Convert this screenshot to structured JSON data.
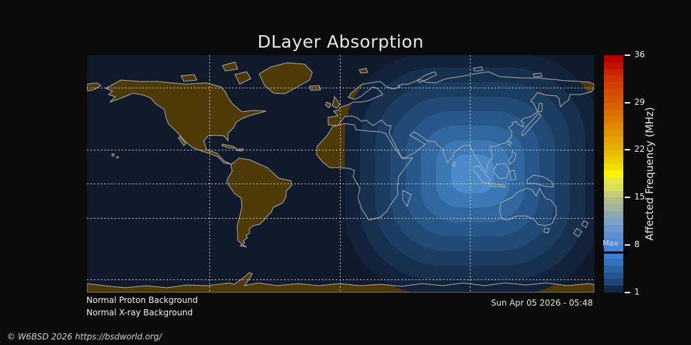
{
  "title": "DLayer Absorption",
  "map": {
    "status_lines": [
      "Normal Proton Background",
      "Normal X-ray Background"
    ],
    "timestamp": "Sun Apr 05 2026 - 05:48",
    "ocean_color": "#101a2b",
    "land_color": "#4e3a07",
    "coastline_color": "#b0afae",
    "contour_colors": [
      "#12223a",
      "#16304e",
      "#1b3d62",
      "#214a76",
      "#28588b",
      "#31679f",
      "#3b78b4",
      "#4c8bcb"
    ]
  },
  "colorbar": {
    "axis_label": "Affected Frequency (MHz)",
    "tick_labels": [
      "36",
      "29",
      "22",
      "15",
      "8",
      "1"
    ],
    "value_range": [
      1,
      36
    ],
    "max_label": "Max",
    "max_value": "8",
    "colors_top_to_bottom": [
      "#b50000",
      "#c11000",
      "#ca2300",
      "#cf3300",
      "#d23f00",
      "#d54b00",
      "#d75500",
      "#d96200",
      "#dc6d00",
      "#de7900",
      "#e08700",
      "#e29400",
      "#e4a200",
      "#e6af00",
      "#e8bd00",
      "#eccd00",
      "#f0df00",
      "#f8f400",
      "#e4e74a",
      "#d8e05c",
      "#c6cd72",
      "#b0bd88",
      "#9fb39d",
      "#8ca8b2",
      "#7da0c4",
      "#6d97cf",
      "#5e90d6",
      "#518bd9",
      "#4587d7",
      "#3b82d4",
      "#3273bd",
      "#2a64a5",
      "#23548c",
      "#1c4474",
      "#11294a"
    ]
  },
  "footer": {
    "copyright": "© W6BSD 2026 https://bsdworld.org/"
  },
  "background_color": "#0b0b0c"
}
